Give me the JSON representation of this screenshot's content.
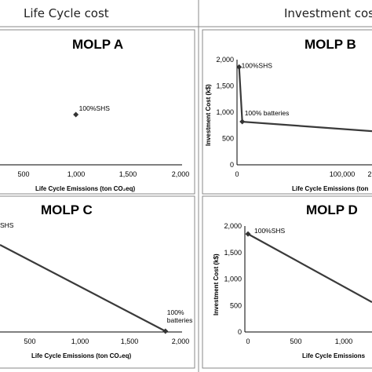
{
  "headers": {
    "left": "Life Cycle cost",
    "right": "Investment cost"
  },
  "colors": {
    "line": "#3a3a3a",
    "marker": "#333333",
    "border": "#888888"
  },
  "chart_data": [
    {
      "id": "A",
      "type": "scatter",
      "title": "MOLP A",
      "xlabel": "Life Cycle Emissions  (ton CO₂eq)",
      "ylabel": "",
      "xlim": [
        200,
        2000
      ],
      "x_ticks": [
        "500",
        "1,000",
        "1,500",
        "2,000"
      ],
      "y_ticks": [],
      "points": [
        {
          "x": 1000,
          "label": "100%SHS"
        }
      ]
    },
    {
      "id": "B",
      "type": "line",
      "title": "MOLP B",
      "xlabel": "Life Cycle Emissions  (ton",
      "ylabel": "Investment Cost (k$)",
      "xlim": [
        -10000,
        270000
      ],
      "ylim": [
        0,
        2000
      ],
      "x_ticks": [
        "0",
        "100,000",
        "2"
      ],
      "y_ticks": [
        "0",
        "500",
        "1,000",
        "1,500",
        "2,000"
      ],
      "points": [
        {
          "x": 2000,
          "y": 1860,
          "label": "100%SHS"
        },
        {
          "x": 5000,
          "y": 820,
          "label": "100% batteries"
        },
        {
          "x": 270000,
          "y": 640,
          "label": ""
        }
      ]
    },
    {
      "id": "C",
      "type": "line",
      "title": "MOLP C",
      "xlabel": "Life Cycle Emissions  (ton CO₂eq)",
      "ylabel": "",
      "xlim": [
        200,
        2000
      ],
      "x_ticks": [
        "500",
        "1,000",
        "1,500",
        "2,000"
      ],
      "y_ticks": [],
      "points": [
        {
          "x": 180,
          "label": "SHS"
        },
        {
          "x": 1850,
          "label": "100% batteries"
        }
      ]
    },
    {
      "id": "D",
      "type": "line",
      "title": "MOLP D",
      "xlabel": "Life Cycle Emissions",
      "ylabel": "Investment Cost (k$)",
      "xlim": [
        0,
        2000
      ],
      "ylim": [
        0,
        2000
      ],
      "x_ticks": [
        "0",
        "500",
        "1,000"
      ],
      "y_ticks": [
        "0",
        "500",
        "1,000",
        "1,500",
        "2,000"
      ],
      "points": [
        {
          "x": 0,
          "y": 1850,
          "label": "100%SHS"
        },
        {
          "x": 1850,
          "y": 480,
          "label": ""
        }
      ]
    }
  ]
}
